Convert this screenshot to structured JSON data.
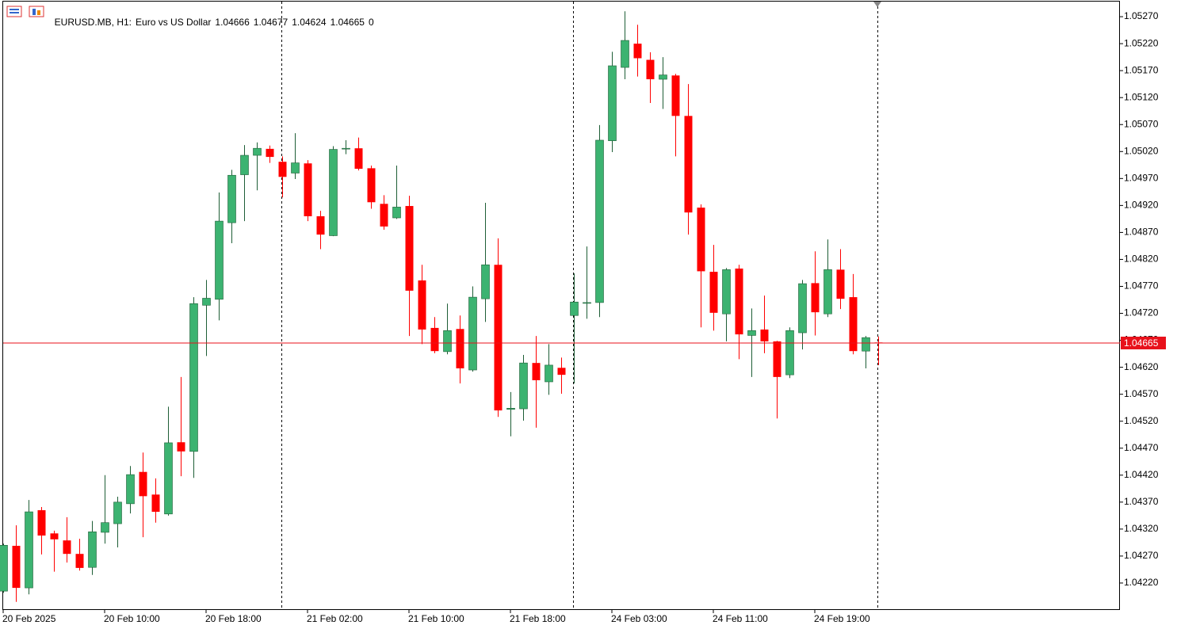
{
  "chart_data": {
    "type": "candlestick",
    "symbol": "EURUSD.MB, H1:",
    "description": "Euro vs US Dollar",
    "header_values": [
      1.04666,
      1.04677,
      1.04624,
      1.04665
    ],
    "volume": 0,
    "last_price": 1.04665,
    "up_color": "#3cb371",
    "down_color": "#ff0000",
    "last_price_color": "#e8111b",
    "categories": [
      "20 Feb 2025",
      null,
      null,
      null,
      null,
      null,
      null,
      null,
      "20 Feb 10:00",
      null,
      null,
      null,
      null,
      null,
      null,
      null,
      "20 Feb 18:00",
      null,
      null,
      null,
      null,
      null,
      null,
      null,
      "21 Feb 02:00",
      null,
      null,
      null,
      null,
      null,
      null,
      null,
      "21 Feb 10:00",
      null,
      null,
      null,
      null,
      null,
      null,
      null,
      "21 Feb 18:00",
      null,
      null,
      null,
      null,
      null,
      null,
      null,
      "24 Feb 03:00",
      null,
      null,
      null,
      null,
      null,
      null,
      null,
      "24 Feb 11:00",
      null,
      null,
      null,
      null,
      null,
      null,
      null,
      "24 Feb 19:00",
      null,
      null,
      null,
      null,
      null
    ],
    "open": [
      1.04205,
      1.04289,
      1.04211,
      1.04355,
      1.04312,
      1.04299,
      1.04274,
      1.04249,
      1.04314,
      1.0433,
      1.04367,
      1.04426,
      1.04384,
      1.04348,
      1.04481,
      1.04464,
      1.04735,
      1.04746,
      1.04888,
      1.04977,
      1.05013,
      1.05025,
      1.05001,
      1.0498,
      1.04998,
      1.049,
      1.04864,
      1.05025,
      1.05026,
      1.04989,
      1.04923,
      1.04897,
      1.04919,
      1.04781,
      1.04693,
      1.04649,
      1.04691,
      1.04615,
      1.04747,
      1.0481,
      1.04542,
      1.04543,
      1.04628,
      1.04593,
      1.04619,
      1.04716,
      1.0474,
      1.0474,
      1.0504,
      1.05176,
      1.0522,
      1.0519,
      1.05154,
      1.05161,
      1.05086,
      1.04916,
      1.04797,
      1.04719,
      1.04803,
      1.04679,
      1.0469,
      1.04668,
      1.04606,
      1.04684,
      1.04776,
      1.04719,
      1.04801,
      1.0475,
      1.0465,
      1.04666
    ],
    "high": [
      1.04293,
      1.04327,
      1.04374,
      1.04361,
      1.04317,
      1.04342,
      1.04302,
      1.04335,
      1.0442,
      1.0438,
      1.04437,
      1.04462,
      1.04414,
      1.04547,
      1.04602,
      1.0475,
      1.04782,
      1.04944,
      1.04986,
      1.05032,
      1.05037,
      1.05031,
      1.05011,
      1.05054,
      1.05004,
      1.0491,
      1.0503,
      1.05041,
      1.05046,
      1.04994,
      1.04939,
      1.04994,
      1.04938,
      1.0481,
      1.04713,
      1.04738,
      1.04716,
      1.0477,
      1.04925,
      1.04859,
      1.04574,
      1.04643,
      1.04678,
      1.04663,
      1.04638,
      1.04794,
      1.04844,
      1.05069,
      1.05205,
      1.0528,
      1.05255,
      1.05204,
      1.05195,
      1.05164,
      1.05145,
      1.04922,
      1.04847,
      1.04804,
      1.0481,
      1.04729,
      1.04753,
      1.04669,
      1.04694,
      1.04782,
      1.04835,
      1.04857,
      1.04839,
      1.04793,
      1.04678,
      1.04677
    ],
    "low": [
      1.04202,
      1.04185,
      1.04199,
      1.04273,
      1.04241,
      1.04258,
      1.04243,
      1.04235,
      1.04293,
      1.04286,
      1.04349,
      1.04305,
      1.04332,
      1.04345,
      1.04418,
      1.04415,
      1.04641,
      1.04707,
      1.0485,
      1.04891,
      1.04948,
      1.04999,
      1.04935,
      1.04969,
      1.04891,
      1.04839,
      1.04863,
      1.05015,
      1.04985,
      1.04914,
      1.04875,
      1.04895,
      1.04678,
      1.04663,
      1.04646,
      1.04644,
      1.0459,
      1.04612,
      1.04704,
      1.04528,
      1.04492,
      1.04521,
      1.04508,
      1.04569,
      1.04571,
      1.0459,
      1.0471,
      1.04713,
      1.05019,
      1.05154,
      1.05159,
      1.0511,
      1.05099,
      1.05011,
      1.04866,
      1.04694,
      1.04688,
      1.04668,
      1.04635,
      1.04602,
      1.04646,
      1.04525,
      1.046,
      1.04653,
      1.04679,
      1.04713,
      1.04728,
      1.04644,
      1.04618,
      1.04624
    ],
    "close": [
      1.0429,
      1.04211,
      1.04352,
      1.04308,
      1.04301,
      1.04274,
      1.04248,
      1.04315,
      1.04332,
      1.0437,
      1.04421,
      1.04381,
      1.04352,
      1.0448,
      1.04464,
      1.04738,
      1.04748,
      1.04891,
      1.04976,
      1.05013,
      1.05026,
      1.0501,
      1.04973,
      1.04999,
      1.049,
      1.04866,
      1.05024,
      1.05026,
      1.04988,
      1.04926,
      1.04881,
      1.04917,
      1.04762,
      1.0469,
      1.0465,
      1.04688,
      1.04618,
      1.0475,
      1.0481,
      1.0454,
      1.04544,
      1.04628,
      1.04596,
      1.04624,
      1.04606,
      1.04741,
      1.0474,
      1.05041,
      1.05179,
      1.05226,
      1.05193,
      1.05154,
      1.05162,
      1.05086,
      1.04907,
      1.04798,
      1.04721,
      1.04801,
      1.04681,
      1.04688,
      1.04668,
      1.04602,
      1.04688,
      1.04775,
      1.04722,
      1.04801,
      1.04747,
      1.0465,
      1.04675,
      1.04665
    ],
    "ylim": [
      1.0417,
      1.05298
    ],
    "yticks": [
      {
        "value": 1.0422,
        "label": "1.04220"
      },
      {
        "value": 1.0427,
        "label": "1.04270"
      },
      {
        "value": 1.0432,
        "label": "1.04320"
      },
      {
        "value": 1.0437,
        "label": "1.04370"
      },
      {
        "value": 1.0442,
        "label": "1.04420"
      },
      {
        "value": 1.0447,
        "label": "1.04470"
      },
      {
        "value": 1.0452,
        "label": "1.04520"
      },
      {
        "value": 1.0457,
        "label": "1.04570"
      },
      {
        "value": 1.0462,
        "label": "1.04620"
      },
      {
        "value": 1.0467,
        "label": "1.04670"
      },
      {
        "value": 1.0472,
        "label": "1.04720"
      },
      {
        "value": 1.0477,
        "label": "1.04770"
      },
      {
        "value": 1.0482,
        "label": "1.04820"
      },
      {
        "value": 1.0487,
        "label": "1.04870"
      },
      {
        "value": 1.0492,
        "label": "1.04920"
      },
      {
        "value": 1.0497,
        "label": "1.04970"
      },
      {
        "value": 1.0502,
        "label": "1.05020"
      },
      {
        "value": 1.0507,
        "label": "1.05070"
      },
      {
        "value": 1.0512,
        "label": "1.05120"
      },
      {
        "value": 1.0517,
        "label": "1.05170"
      },
      {
        "value": 1.0522,
        "label": "1.05220"
      },
      {
        "value": 1.0527,
        "label": "1.05270"
      }
    ],
    "grid": false
  }
}
